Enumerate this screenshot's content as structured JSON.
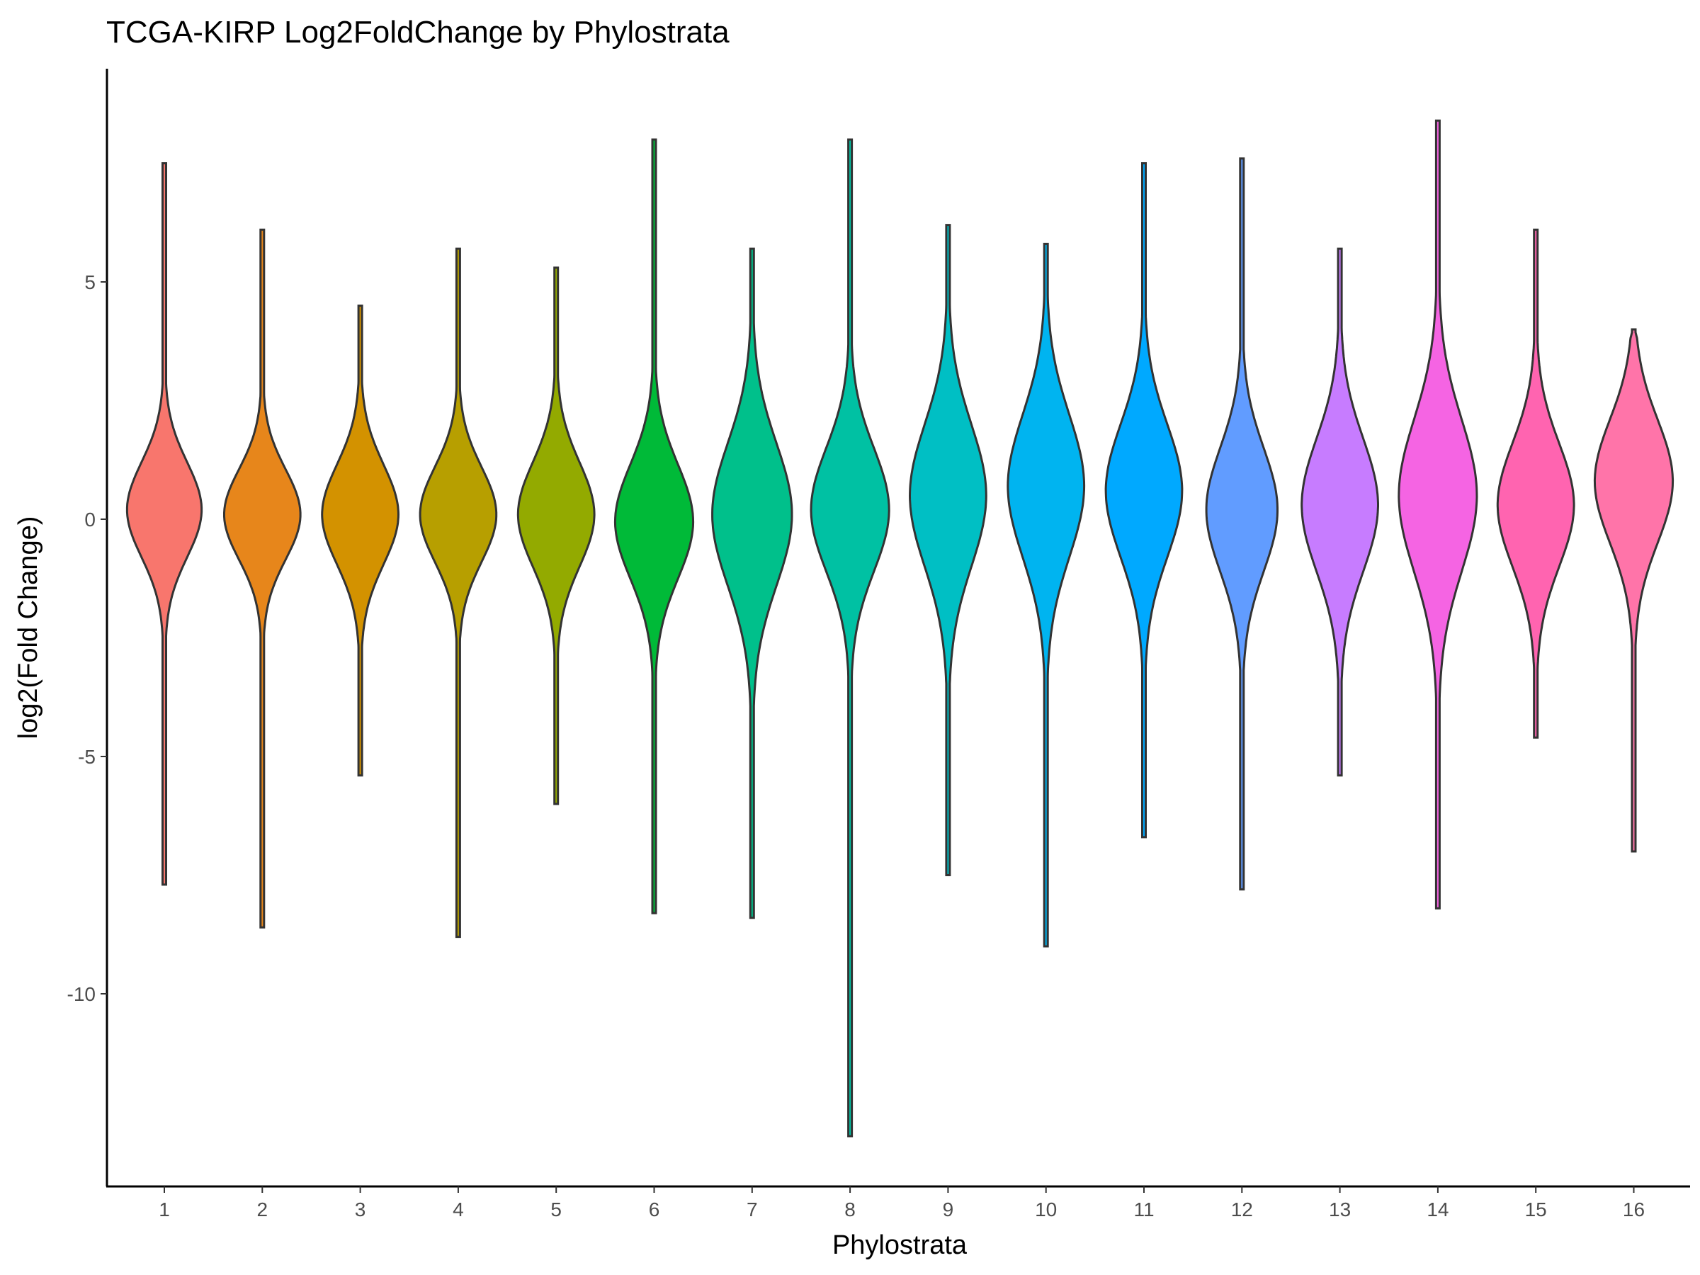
{
  "chart_data": {
    "type": "violin",
    "title": "TCGA-KIRP Log2FoldChange by Phylostrata",
    "xlabel": "Phylostrata",
    "ylabel": "log2(Fold Change)",
    "ylim": [
      -13.5,
      9.4
    ],
    "yticks": [
      5,
      0,
      -5,
      -10
    ],
    "ytick_labels": [
      "5",
      "0",
      "-5",
      "-10"
    ],
    "grid": false,
    "legend": "none",
    "categories": [
      "1",
      "2",
      "3",
      "4",
      "5",
      "6",
      "7",
      "8",
      "9",
      "10",
      "11",
      "12",
      "13",
      "14",
      "15",
      "16"
    ],
    "series": [
      {
        "category": "1",
        "color": "#F8766D",
        "min": -7.7,
        "max": 7.5,
        "center": 0.2,
        "halfwidth": 0.44,
        "spread": 1.0
      },
      {
        "category": "2",
        "color": "#E7861B",
        "min": -8.6,
        "max": 6.1,
        "center": 0.1,
        "halfwidth": 0.45,
        "spread": 0.95
      },
      {
        "category": "3",
        "color": "#D39200",
        "min": -5.4,
        "max": 4.5,
        "center": 0.1,
        "halfwidth": 0.45,
        "spread": 1.05
      },
      {
        "category": "4",
        "color": "#B79F00",
        "min": -8.8,
        "max": 5.7,
        "center": 0.1,
        "halfwidth": 0.45,
        "spread": 1.0
      },
      {
        "category": "5",
        "color": "#93AA00",
        "min": -6.0,
        "max": 5.3,
        "center": 0.1,
        "halfwidth": 0.45,
        "spread": 1.1
      },
      {
        "category": "6",
        "color": "#00BA38",
        "min": -8.3,
        "max": 8.0,
        "center": -0.05,
        "halfwidth": 0.46,
        "spread": 1.2
      },
      {
        "category": "7",
        "color": "#00C08B",
        "min": -8.4,
        "max": 5.7,
        "center": 0.1,
        "halfwidth": 0.47,
        "spread": 1.5
      },
      {
        "category": "8",
        "color": "#00C1A3",
        "min": -13.0,
        "max": 8.0,
        "center": 0.2,
        "halfwidth": 0.46,
        "spread": 1.3
      },
      {
        "category": "9",
        "color": "#00BFC4",
        "min": -7.5,
        "max": 6.2,
        "center": 0.5,
        "halfwidth": 0.45,
        "spread": 1.5
      },
      {
        "category": "10",
        "color": "#00B4F0",
        "min": -9.0,
        "max": 5.8,
        "center": 0.7,
        "halfwidth": 0.45,
        "spread": 1.5
      },
      {
        "category": "11",
        "color": "#00A9FF",
        "min": -6.7,
        "max": 7.5,
        "center": 0.6,
        "halfwidth": 0.45,
        "spread": 1.4
      },
      {
        "category": "12",
        "color": "#619CFF",
        "min": -7.8,
        "max": 7.6,
        "center": 0.2,
        "halfwidth": 0.42,
        "spread": 1.3
      },
      {
        "category": "13",
        "color": "#C77CFF",
        "min": -5.4,
        "max": 5.7,
        "center": 0.3,
        "halfwidth": 0.45,
        "spread": 1.4
      },
      {
        "category": "14",
        "color": "#F564E3",
        "min": -8.2,
        "max": 8.4,
        "center": 0.5,
        "halfwidth": 0.46,
        "spread": 1.6
      },
      {
        "category": "15",
        "color": "#FF64B0",
        "min": -4.6,
        "max": 6.1,
        "center": 0.3,
        "halfwidth": 0.45,
        "spread": 1.3
      },
      {
        "category": "16",
        "color": "#FF74A9",
        "min": -7.0,
        "max": 4.0,
        "center": 0.8,
        "halfwidth": 0.46,
        "spread": 1.3
      }
    ]
  }
}
